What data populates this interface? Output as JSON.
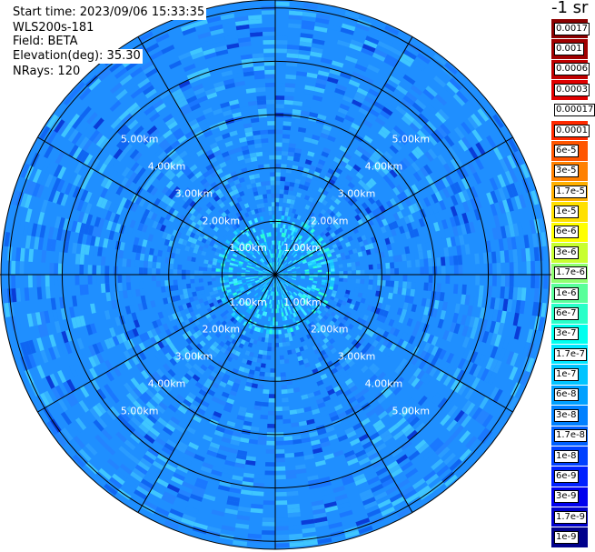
{
  "info": {
    "start_time": "Start time: 2023/09/06 15:33:35",
    "instrument": "WLS200s-181",
    "field": "Field: BETA",
    "elevation": "Elevation(deg): 35.30",
    "nrays": "NRays: 120"
  },
  "colorbar": {
    "title": "-1 sr",
    "entries": [
      {
        "label": "0.0017",
        "color": "#8b0000"
      },
      {
        "label": "0.001",
        "color": "#a00000"
      },
      {
        "label": "0.0006",
        "color": "#c00000"
      },
      {
        "label": "0.0003",
        "color": "#e00000"
      },
      {
        "label": "0.00017",
        "color": "#ffffff"
      },
      {
        "label": "0.0001",
        "color": "#ff2a00"
      },
      {
        "label": "6e-5",
        "color": "#ff5500"
      },
      {
        "label": "3e-5",
        "color": "#ff8000"
      },
      {
        "label": "1.7e-5",
        "color": "#ffb000"
      },
      {
        "label": "1e-5",
        "color": "#ffe000"
      },
      {
        "label": "6e-6",
        "color": "#ffff00"
      },
      {
        "label": "3e-6",
        "color": "#c8ff30"
      },
      {
        "label": "1.7e-6",
        "color": "#90ff70"
      },
      {
        "label": "1e-6",
        "color": "#5aff9a"
      },
      {
        "label": "6e-7",
        "color": "#2affc8"
      },
      {
        "label": "3e-7",
        "color": "#00ffee"
      },
      {
        "label": "1.7e-7",
        "color": "#00e6ff"
      },
      {
        "label": "1e-7",
        "color": "#00c4ff"
      },
      {
        "label": "6e-8",
        "color": "#00a0ff"
      },
      {
        "label": "3e-8",
        "color": "#0080ff"
      },
      {
        "label": "1.7e-8",
        "color": "#0060ff"
      },
      {
        "label": "1e-8",
        "color": "#0040ff"
      },
      {
        "label": "6e-9",
        "color": "#0020ff"
      },
      {
        "label": "3e-9",
        "color": "#0000ee"
      },
      {
        "label": "1.7e-9",
        "color": "#0000cc"
      },
      {
        "label": "1e-9",
        "color": "#00008b"
      }
    ]
  },
  "chart_data": {
    "type": "heatmap",
    "projection": "polar (PPI)",
    "field": "BETA",
    "elevation_deg": 35.3,
    "n_rays": 120,
    "range_rings_km": [
      1,
      2,
      3,
      4,
      5
    ],
    "ring_labels": [
      "1.00km",
      "2.00km",
      "3.00km",
      "4.00km",
      "5.00km"
    ],
    "max_range_km": 5.15,
    "radial_spokes_deg": [
      0,
      30,
      60,
      90,
      120,
      150,
      180,
      210,
      240,
      270,
      300,
      330
    ],
    "colors": {
      "background_level": "#1f8fff",
      "near_level": "#00e6ff",
      "bright_level": "#2affc8",
      "low_level": "#1060f0",
      "grid": "#000000"
    }
  }
}
